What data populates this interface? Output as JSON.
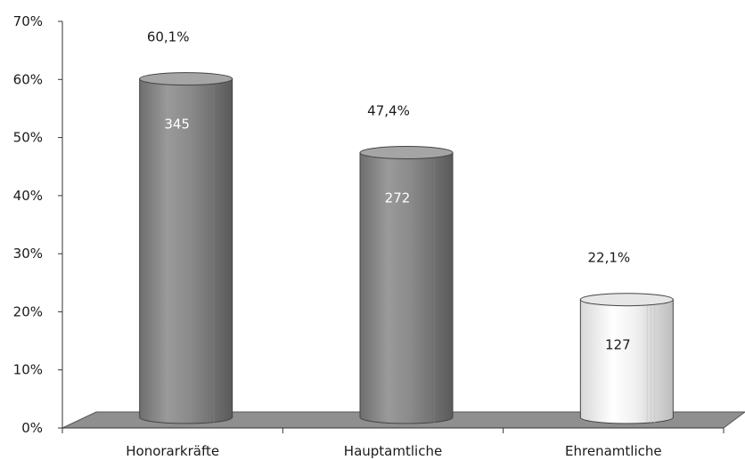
{
  "chart_data": {
    "type": "bar",
    "title": "",
    "xlabel": "",
    "ylabel": "",
    "ylim": [
      0,
      70
    ],
    "y_ticks": [
      "0%",
      "10%",
      "20%",
      "30%",
      "40%",
      "50%",
      "60%",
      "70%"
    ],
    "grid": false,
    "bar_style": "3d-cylinder",
    "categories": [
      "Honorarkräfte",
      "Hauptamtliche",
      "Ehrenamtliche"
    ],
    "values": [
      60.1,
      47.4,
      22.1
    ],
    "value_labels": [
      "60,1%",
      "47,4%",
      "22,1%"
    ],
    "count_labels": [
      "345",
      "272",
      "127"
    ],
    "bar_colors": [
      "#8a8a8a",
      "#8a8a8a",
      "#f2f2f2"
    ],
    "count_label_colors": [
      "#ffffff",
      "#ffffff",
      "#1a1a1a"
    ]
  }
}
